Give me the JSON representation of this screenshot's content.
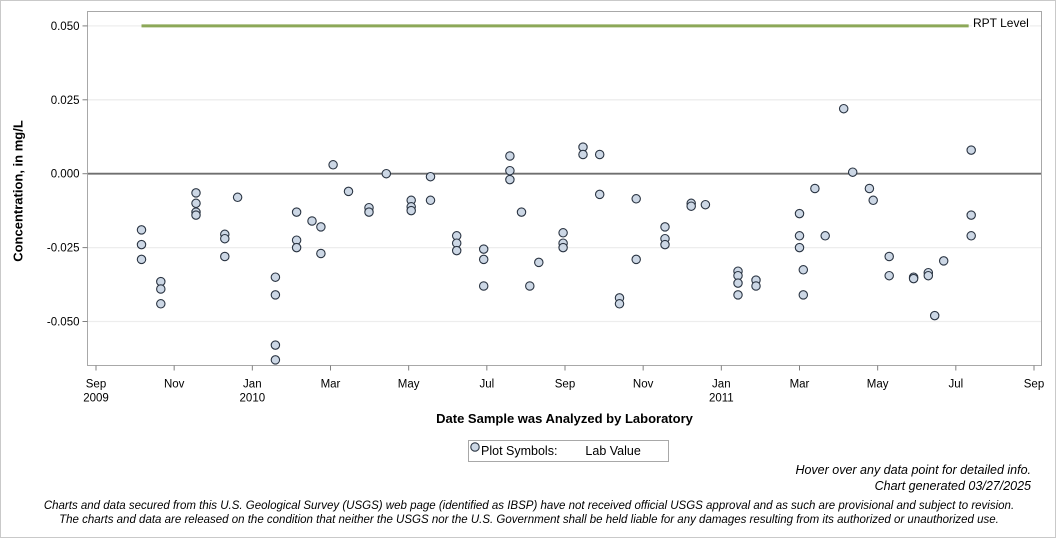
{
  "chart_data": {
    "type": "scatter",
    "title": "",
    "ylabel": "Concentration, in mg/L",
    "xlabel": "Date Sample was Analyzed by Laboratory",
    "ylim": [
      -0.065,
      0.055
    ],
    "grid": "horizontal",
    "legend_position": "bottom-center",
    "y_ticks": [
      {
        "v": 0.05,
        "label": "0.050"
      },
      {
        "v": 0.025,
        "label": "0.025"
      },
      {
        "v": 0.0,
        "label": "0.000"
      },
      {
        "v": -0.025,
        "label": "-0.025"
      },
      {
        "v": -0.05,
        "label": "-0.050"
      }
    ],
    "x_ticks": [
      {
        "m": 0,
        "lines": [
          "Sep",
          "2009"
        ]
      },
      {
        "m": 2,
        "lines": [
          "Nov"
        ]
      },
      {
        "m": 4,
        "lines": [
          "Jan",
          "2010"
        ]
      },
      {
        "m": 6,
        "lines": [
          "Mar"
        ]
      },
      {
        "m": 8,
        "lines": [
          "May"
        ]
      },
      {
        "m": 10,
        "lines": [
          "Jul"
        ]
      },
      {
        "m": 12,
        "lines": [
          "Sep"
        ]
      },
      {
        "m": 14,
        "lines": [
          "Nov"
        ]
      },
      {
        "m": 16,
        "lines": [
          "Jan",
          "2011"
        ]
      },
      {
        "m": 18,
        "lines": [
          "Mar"
        ]
      },
      {
        "m": 20,
        "lines": [
          "May"
        ]
      },
      {
        "m": 22,
        "lines": [
          "Jul"
        ]
      },
      {
        "m": 24,
        "lines": [
          "Sep"
        ]
      }
    ],
    "zero_line": {
      "value": 0.0,
      "color": "#6f6f6f"
    },
    "rpt_line": {
      "label": "RPT Level",
      "value": 0.05,
      "color": "#8ca858",
      "start": "2009-10-06",
      "end": "2011-07-11"
    },
    "legend": {
      "title": "Plot Symbols:"
    },
    "series": [
      {
        "name": "Lab Value",
        "marker": {
          "shape": "circle",
          "fill": "#ccd7e5",
          "stroke": "#2a3442"
        },
        "points": [
          {
            "d": "2009-10-06",
            "v": -0.019
          },
          {
            "d": "2009-10-06",
            "v": -0.024
          },
          {
            "d": "2009-10-06",
            "v": -0.029
          },
          {
            "d": "2009-10-21",
            "v": -0.0365
          },
          {
            "d": "2009-10-21",
            "v": -0.039
          },
          {
            "d": "2009-10-21",
            "v": -0.044
          },
          {
            "d": "2009-11-18",
            "v": -0.0065
          },
          {
            "d": "2009-11-18",
            "v": -0.01
          },
          {
            "d": "2009-11-18",
            "v": -0.013
          },
          {
            "d": "2009-11-18",
            "v": -0.014
          },
          {
            "d": "2009-12-10",
            "v": -0.0205
          },
          {
            "d": "2009-12-10",
            "v": -0.022
          },
          {
            "d": "2009-12-10",
            "v": -0.028
          },
          {
            "d": "2009-12-20",
            "v": -0.008
          },
          {
            "d": "2010-01-19",
            "v": -0.035
          },
          {
            "d": "2010-01-19",
            "v": -0.041
          },
          {
            "d": "2010-01-19",
            "v": -0.058
          },
          {
            "d": "2010-01-19",
            "v": -0.063
          },
          {
            "d": "2010-02-05",
            "v": -0.013
          },
          {
            "d": "2010-02-05",
            "v": -0.0225
          },
          {
            "d": "2010-02-05",
            "v": -0.025
          },
          {
            "d": "2010-02-17",
            "v": -0.016
          },
          {
            "d": "2010-02-24",
            "v": -0.018
          },
          {
            "d": "2010-02-24",
            "v": -0.027
          },
          {
            "d": "2010-03-03",
            "v": 0.003
          },
          {
            "d": "2010-03-15",
            "v": -0.006
          },
          {
            "d": "2010-03-31",
            "v": -0.0115
          },
          {
            "d": "2010-03-31",
            "v": -0.013
          },
          {
            "d": "2010-04-14",
            "v": 0.0
          },
          {
            "d": "2010-05-03",
            "v": -0.009
          },
          {
            "d": "2010-05-03",
            "v": -0.0112
          },
          {
            "d": "2010-05-03",
            "v": -0.0125
          },
          {
            "d": "2010-05-18",
            "v": -0.001
          },
          {
            "d": "2010-05-18",
            "v": -0.009
          },
          {
            "d": "2010-06-08",
            "v": -0.021
          },
          {
            "d": "2010-06-08",
            "v": -0.0235
          },
          {
            "d": "2010-06-08",
            "v": -0.026
          },
          {
            "d": "2010-06-29",
            "v": -0.0255
          },
          {
            "d": "2010-06-29",
            "v": -0.029
          },
          {
            "d": "2010-06-29",
            "v": -0.038
          },
          {
            "d": "2010-07-19",
            "v": 0.006
          },
          {
            "d": "2010-07-19",
            "v": 0.001
          },
          {
            "d": "2010-07-19",
            "v": -0.002
          },
          {
            "d": "2010-07-28",
            "v": -0.013
          },
          {
            "d": "2010-08-04",
            "v": -0.038
          },
          {
            "d": "2010-08-11",
            "v": -0.03
          },
          {
            "d": "2010-08-30",
            "v": -0.02
          },
          {
            "d": "2010-08-30",
            "v": -0.0235
          },
          {
            "d": "2010-08-30",
            "v": -0.025
          },
          {
            "d": "2010-09-15",
            "v": 0.009
          },
          {
            "d": "2010-09-15",
            "v": 0.0065
          },
          {
            "d": "2010-09-28",
            "v": 0.0065
          },
          {
            "d": "2010-09-28",
            "v": -0.007
          },
          {
            "d": "2010-10-13",
            "v": -0.042
          },
          {
            "d": "2010-10-13",
            "v": -0.044
          },
          {
            "d": "2010-10-26",
            "v": -0.0085
          },
          {
            "d": "2010-10-26",
            "v": -0.029
          },
          {
            "d": "2010-11-18",
            "v": -0.018
          },
          {
            "d": "2010-11-18",
            "v": -0.022
          },
          {
            "d": "2010-11-18",
            "v": -0.024
          },
          {
            "d": "2010-12-08",
            "v": -0.01
          },
          {
            "d": "2010-12-08",
            "v": -0.011
          },
          {
            "d": "2010-12-19",
            "v": -0.0105
          },
          {
            "d": "2011-01-14",
            "v": -0.033
          },
          {
            "d": "2011-01-14",
            "v": -0.0345
          },
          {
            "d": "2011-01-14",
            "v": -0.037
          },
          {
            "d": "2011-01-14",
            "v": -0.041
          },
          {
            "d": "2011-01-28",
            "v": -0.036
          },
          {
            "d": "2011-01-28",
            "v": -0.038
          },
          {
            "d": "2011-03-01",
            "v": -0.0135
          },
          {
            "d": "2011-03-01",
            "v": -0.021
          },
          {
            "d": "2011-03-01",
            "v": -0.025
          },
          {
            "d": "2011-03-04",
            "v": -0.0325
          },
          {
            "d": "2011-03-04",
            "v": -0.041
          },
          {
            "d": "2011-03-13",
            "v": -0.005
          },
          {
            "d": "2011-03-21",
            "v": -0.021
          },
          {
            "d": "2011-04-05",
            "v": 0.022
          },
          {
            "d": "2011-04-12",
            "v": 0.0005
          },
          {
            "d": "2011-04-25",
            "v": -0.005
          },
          {
            "d": "2011-04-28",
            "v": -0.009
          },
          {
            "d": "2011-05-10",
            "v": -0.028
          },
          {
            "d": "2011-05-10",
            "v": -0.0345
          },
          {
            "d": "2011-05-29",
            "v": -0.035
          },
          {
            "d": "2011-05-29",
            "v": -0.0355
          },
          {
            "d": "2011-06-10",
            "v": -0.0335
          },
          {
            "d": "2011-06-10",
            "v": -0.0345
          },
          {
            "d": "2011-06-15",
            "v": -0.048
          },
          {
            "d": "2011-06-22",
            "v": -0.0295
          },
          {
            "d": "2011-07-13",
            "v": 0.008
          },
          {
            "d": "2011-07-13",
            "v": -0.014
          },
          {
            "d": "2011-07-13",
            "v": -0.021
          }
        ]
      }
    ]
  },
  "notes": {
    "hover": "Hover over any data point for detailed info.",
    "generated": "Chart generated 03/27/2025"
  },
  "disclaimer": {
    "line1": "Charts and data secured from this U.S. Geological Survey (USGS) web page (identified as IBSP) have not received official USGS approval and as such are provisional and subject to revision.",
    "line2": "The charts and data are released on the condition that neither the USGS nor the U.S. Government shall be held liable for any damages resulting from its authorized or unauthorized use."
  }
}
